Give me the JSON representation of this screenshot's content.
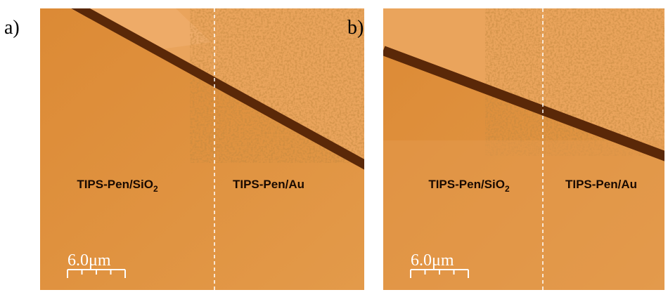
{
  "panels": [
    {
      "label": "a)",
      "left_label": "TIPS-Pen/SiO",
      "left_label_sub": "2",
      "right_label": "TIPS-Pen/Au",
      "scale_bar": "6.0μm"
    },
    {
      "label": "b)",
      "left_label": "TIPS-Pen/SiO",
      "left_label_sub": "2",
      "right_label": "TIPS-Pen/Au",
      "scale_bar": "6.0μm"
    }
  ]
}
